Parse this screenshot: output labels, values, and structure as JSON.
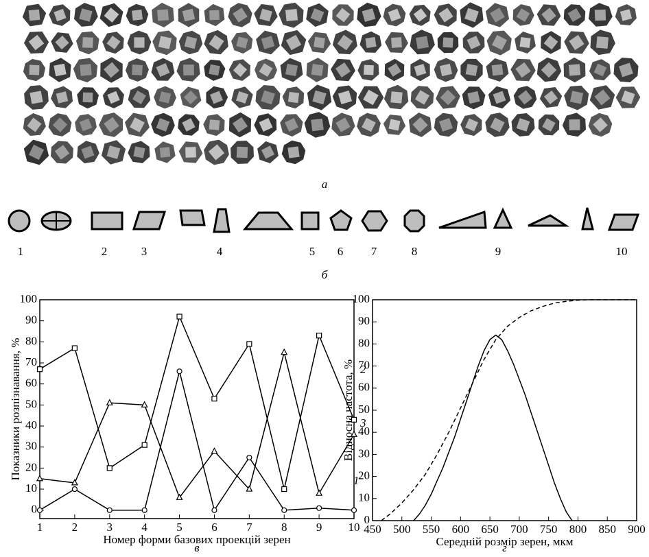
{
  "panel_labels": [
    "а",
    "б"
  ],
  "shape_labels": [
    "1",
    "2",
    "3",
    "4",
    "5",
    "6",
    "7",
    "8",
    "9",
    "10"
  ],
  "chart_data": [
    {
      "type": "line",
      "caption": "в",
      "xlabel": "Номер форми базових проекцій зерен",
      "ylabel": "Показники розпізнавання, %",
      "x": [
        1,
        2,
        3,
        4,
        5,
        6,
        7,
        8,
        9,
        10
      ],
      "xlim": [
        1,
        10
      ],
      "xticks": [
        1,
        2,
        3,
        4,
        5,
        6,
        7,
        8,
        9,
        10
      ],
      "ylim": [
        -4,
        100
      ],
      "yticks": [
        0,
        10,
        20,
        30,
        40,
        50,
        60,
        70,
        80,
        90,
        100
      ],
      "series": [
        {
          "name": "1",
          "color": "#000000",
          "marker": "circle",
          "values": [
            0,
            10,
            0,
            0,
            66,
            0,
            25,
            0,
            1,
            0
          ]
        },
        {
          "name": "2",
          "color": "#000000",
          "marker": "square",
          "values": [
            67,
            77,
            20,
            31,
            92,
            53,
            79,
            10,
            83,
            43
          ]
        },
        {
          "name": "3",
          "color": "#000000",
          "marker": "triangle",
          "values": [
            15,
            13,
            51,
            50,
            6,
            28,
            10,
            75,
            8,
            36
          ]
        }
      ]
    },
    {
      "type": "line",
      "caption": "г",
      "xlabel": "Середній розмір зерен, мкм",
      "ylabel": "Відносна частота, %",
      "xlim": [
        450,
        900
      ],
      "xticks": [
        450,
        500,
        550,
        600,
        650,
        700,
        750,
        800,
        850,
        900
      ],
      "ylim": [
        0,
        100
      ],
      "yticks": [
        0,
        10,
        20,
        30,
        40,
        50,
        60,
        70,
        80,
        90,
        100
      ],
      "series": [
        {
          "color": "#000000",
          "dashed": false,
          "x": [
            520,
            530,
            540,
            550,
            560,
            570,
            580,
            590,
            600,
            610,
            620,
            630,
            640,
            650,
            660,
            670,
            680,
            690,
            700,
            710,
            720,
            730,
            740,
            750,
            760,
            770,
            780,
            790
          ],
          "values": [
            0,
            3,
            7,
            12,
            18,
            24,
            31,
            38,
            46,
            54,
            62,
            70,
            77,
            82,
            84,
            82,
            77,
            71,
            64,
            57,
            49,
            41,
            33,
            25,
            17,
            10,
            4,
            0
          ]
        },
        {
          "color": "#000000",
          "dashed": true,
          "x": [
            465,
            480,
            500,
            520,
            540,
            560,
            580,
            600,
            620,
            640,
            660,
            680,
            700,
            720,
            740,
            760,
            780,
            800,
            820,
            900
          ],
          "values": [
            0,
            3,
            8,
            14,
            21,
            30,
            40,
            51,
            62,
            73,
            82,
            88,
            92,
            95,
            97,
            98.5,
            99.3,
            99.8,
            100,
            100
          ]
        }
      ]
    }
  ]
}
